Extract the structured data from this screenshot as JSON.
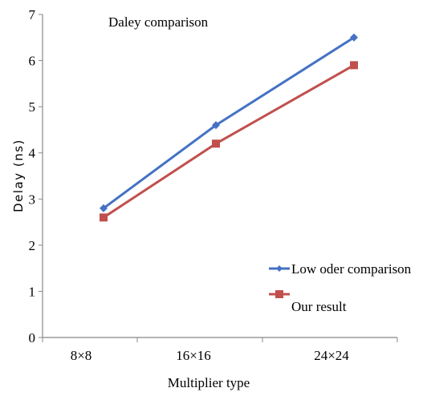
{
  "chart_data": {
    "type": "line",
    "title": "Daley comparison",
    "xlabel": "Multiplier type",
    "ylabel": "Delay (ns)",
    "categories": [
      "8×8",
      "16×16",
      "24×24"
    ],
    "ylim": [
      0,
      7
    ],
    "yticks": [
      "0",
      "1",
      "2",
      "3",
      "4",
      "5",
      "6",
      "7"
    ],
    "grid": false,
    "legend_position": "bottom-right",
    "series": [
      {
        "name": "Low oder comparison",
        "values": [
          2.8,
          4.6,
          6.5
        ],
        "color": "#4472C4",
        "marker": "diamond"
      },
      {
        "name": "Our result",
        "values": [
          2.6,
          4.2,
          5.9
        ],
        "color": "#C0504D",
        "marker": "square"
      }
    ]
  }
}
